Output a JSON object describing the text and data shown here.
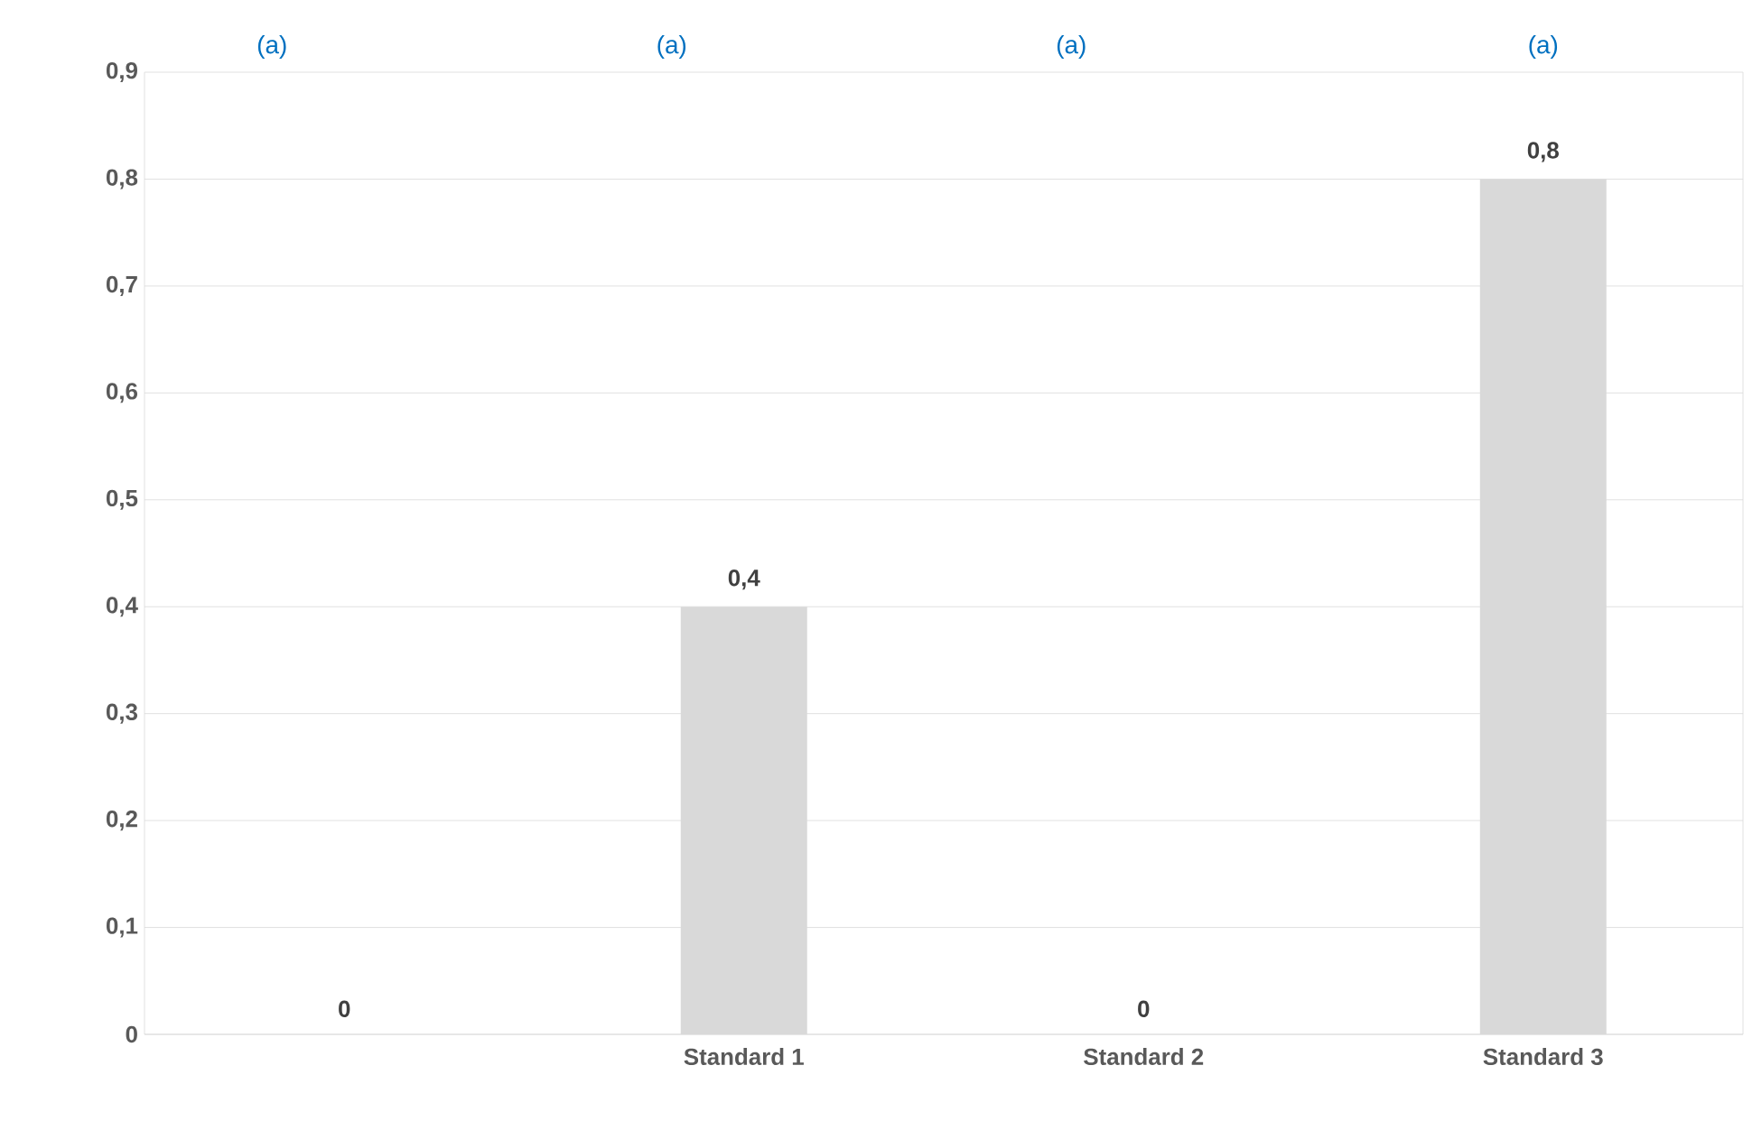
{
  "chart_data": {
    "type": "bar",
    "categories": [
      null,
      "Standard 1",
      "Standard 2",
      "Standard 3"
    ],
    "values": [
      0,
      0.4,
      0,
      0.8
    ],
    "value_labels": [
      "0",
      "0,4",
      "0",
      "0,8"
    ],
    "color": "#d9d9d9",
    "ylim": [
      0,
      0.9
    ],
    "yticks": [
      {
        "value": 0,
        "label": "0"
      },
      {
        "value": 0.1,
        "label": "0,1"
      },
      {
        "value": 0.2,
        "label": "0,2"
      },
      {
        "value": 0.3,
        "label": "0,3"
      },
      {
        "value": 0.4,
        "label": "0,4"
      },
      {
        "value": 0.5,
        "label": "0,5"
      },
      {
        "value": 0.6,
        "label": "0,6"
      },
      {
        "value": 0.7,
        "label": "0,7"
      },
      {
        "value": 0.8,
        "label": "0,8"
      },
      {
        "value": 0.9,
        "label": "0,9"
      }
    ],
    "grid": "y",
    "annotations": [
      "(a)",
      "(a)",
      "(a)",
      "(a)"
    ]
  }
}
